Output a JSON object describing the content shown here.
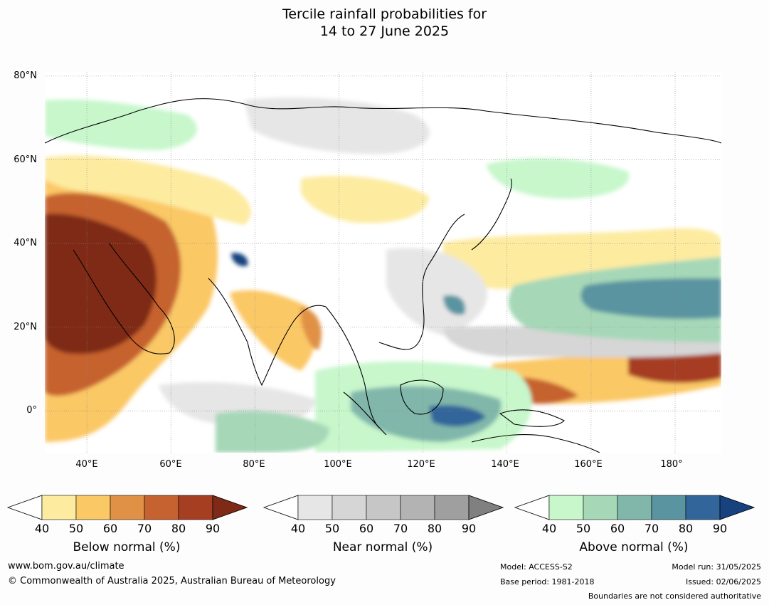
{
  "title_line1": "Tercile rainfall probabilities for",
  "title_line2": "14 to 27 June 2025",
  "map": {
    "lat_labels": [
      "80°N",
      "60°N",
      "40°N",
      "20°N",
      "0°"
    ],
    "lon_labels": [
      "40°E",
      "60°E",
      "80°E",
      "100°E",
      "120°E",
      "140°E",
      "160°E",
      "180°"
    ],
    "lat_values": [
      80,
      60,
      40,
      20,
      0
    ],
    "lon_values": [
      40,
      60,
      80,
      100,
      120,
      140,
      160,
      180
    ],
    "extent": {
      "lon_min": 30,
      "lon_max": 191,
      "lat_min": -10,
      "lat_max": 81
    }
  },
  "colorbars": [
    {
      "label": "Below normal (%)",
      "ticks": [
        "40",
        "50",
        "60",
        "70",
        "80",
        "90"
      ],
      "colors": [
        "#fdeba0",
        "#fbc866",
        "#e09145",
        "#c6622f",
        "#a63e22",
        "#7e2a16"
      ]
    },
    {
      "label": "Near normal (%)",
      "ticks": [
        "40",
        "50",
        "60",
        "70",
        "80",
        "90"
      ],
      "colors": [
        "#e6e6e6",
        "#d6d6d6",
        "#c6c6c6",
        "#b3b3b3",
        "#9f9f9f",
        "#808080"
      ]
    },
    {
      "label": "Above normal (%)",
      "ticks": [
        "40",
        "50",
        "60",
        "70",
        "80",
        "90"
      ],
      "colors": [
        "#c8f7cc",
        "#a6d8b8",
        "#80b7aa",
        "#5a94a0",
        "#32659a",
        "#17427f"
      ]
    }
  ],
  "footer": {
    "website": "www.bom.gov.au/climate",
    "copyright": "© Commonwealth of Australia 2025, Australian Bureau of Meteorology",
    "model": "Model: ACCESS-S2",
    "base_period": "Base period: 1981-2018",
    "model_run": "Model run: 31/05/2025",
    "issued": "Issued: 02/06/2025",
    "disclaimer": "Boundaries are not considered authoritative"
  }
}
